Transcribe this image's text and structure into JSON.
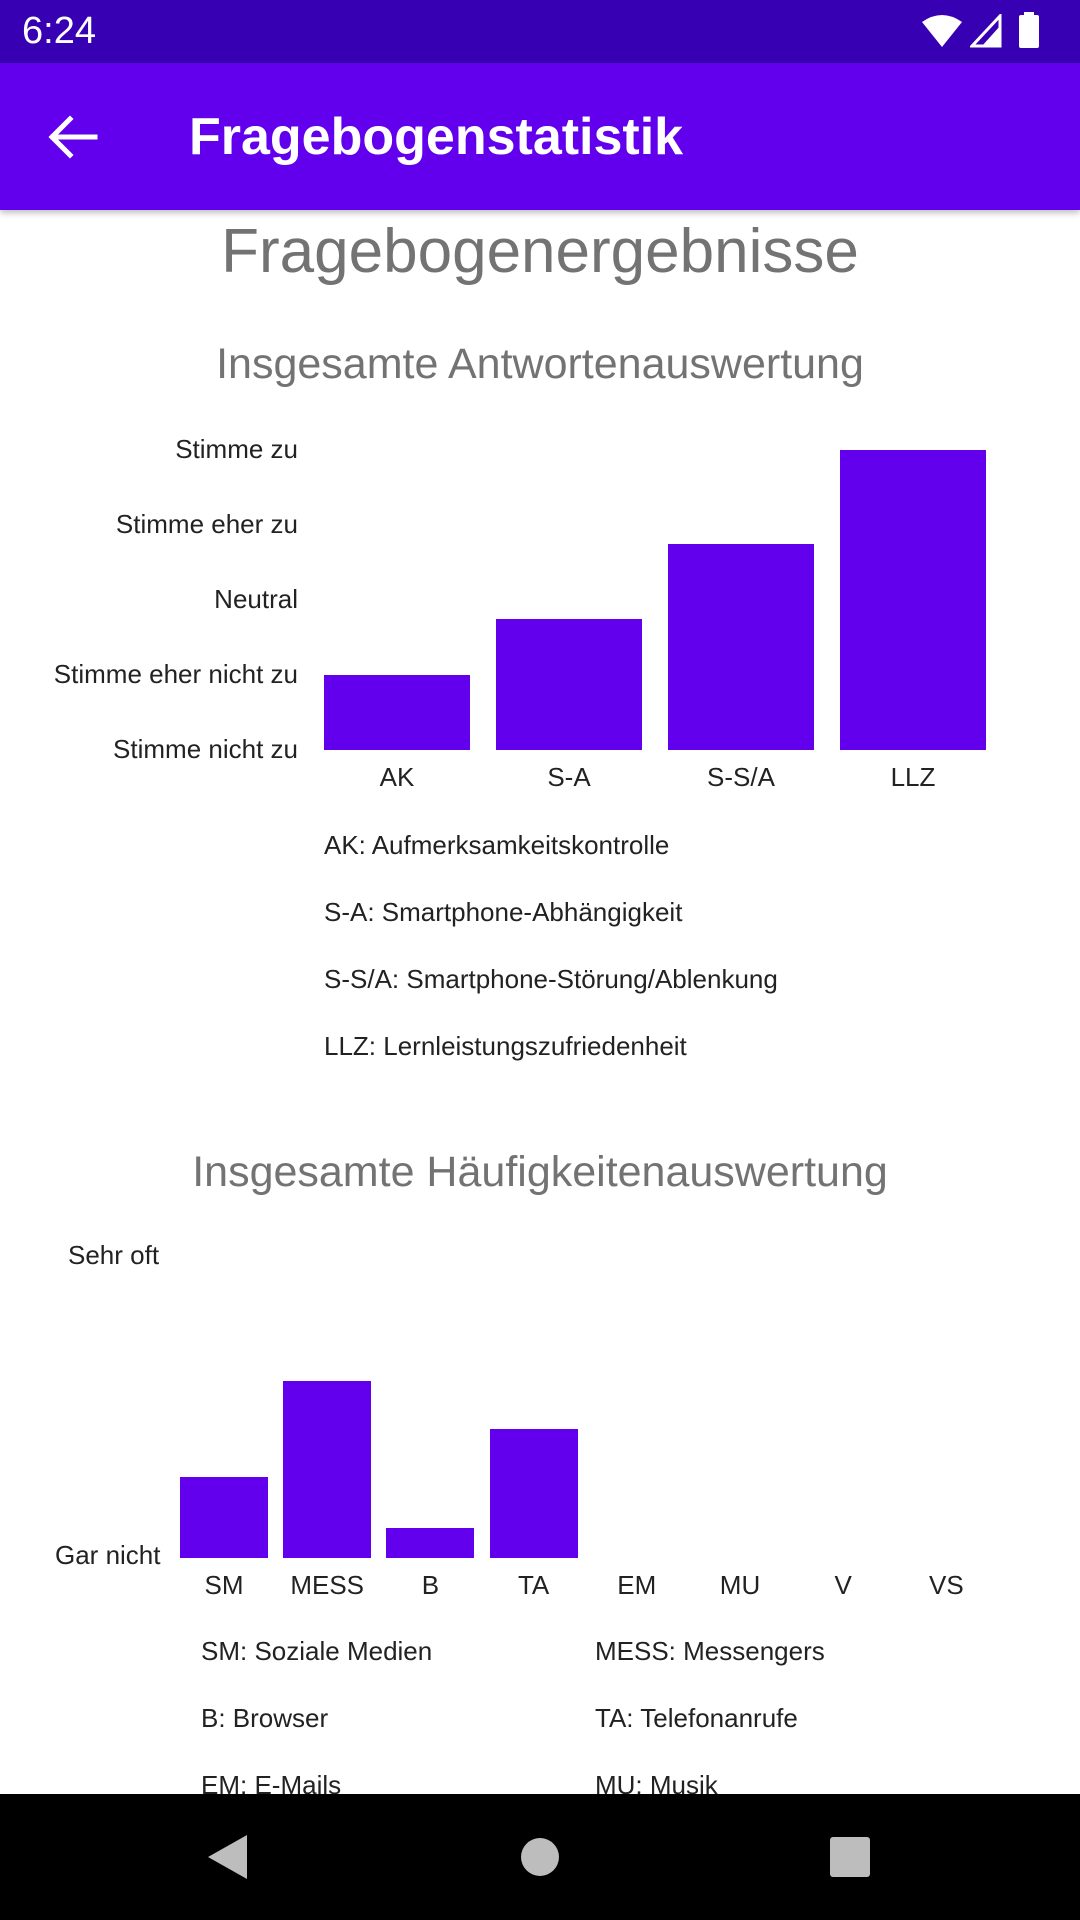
{
  "status_bar": {
    "time": "6:24"
  },
  "app_bar": {
    "title": "Fragebogenstatistik"
  },
  "page": {
    "title": "Fragebogenergebnisse"
  },
  "chart_data": [
    {
      "type": "bar",
      "title": "Insgesamte Antwortenauswertung",
      "y_ticks": [
        "Stimme nicht zu",
        "Stimme eher nicht zu",
        "Neutral",
        "Stimme eher zu",
        "Stimme zu"
      ],
      "ylim": [
        1,
        5
      ],
      "categories": [
        "AK",
        "S-A",
        "S-S/A",
        "LLZ"
      ],
      "values": [
        2.0,
        2.75,
        3.75,
        5.0
      ],
      "legend": [
        "AK: Aufmerksamkeitskontrolle",
        "S-A: Smartphone-Abhängigkeit",
        "S-S/A: Smartphone-Störung/Ablenkung",
        "LLZ: Lernleistungszufriedenheit"
      ],
      "color": "#6200ee"
    },
    {
      "type": "bar",
      "title": "Insgesamte Häufigkeitenauswertung",
      "y_ticks": [
        "Gar nicht",
        "Sehr oft"
      ],
      "ylim": [
        0,
        1
      ],
      "categories": [
        "SM",
        "MESS",
        "B",
        "TA",
        "EM",
        "MU",
        "V",
        "VS"
      ],
      "values": [
        0.27,
        0.59,
        0.1,
        0.43,
        0,
        0,
        0,
        0
      ],
      "legend": [
        "SM: Soziale Medien",
        "MESS: Messengers",
        "B: Browser",
        "TA: Telefonanrufe",
        "EM: E-Mails",
        "MU: Musik"
      ],
      "color": "#6200ee"
    }
  ],
  "colors": {
    "status_bar": "#3700b3",
    "app_bar": "#6200ee",
    "bar": "#6200ee"
  },
  "icons": {
    "back": "arrow-left-icon",
    "wifi": "wifi-icon",
    "signal": "signal-icon",
    "battery": "battery-icon",
    "nav_back": "triangle-back-icon",
    "nav_home": "circle-home-icon",
    "nav_recent": "square-recents-icon"
  }
}
